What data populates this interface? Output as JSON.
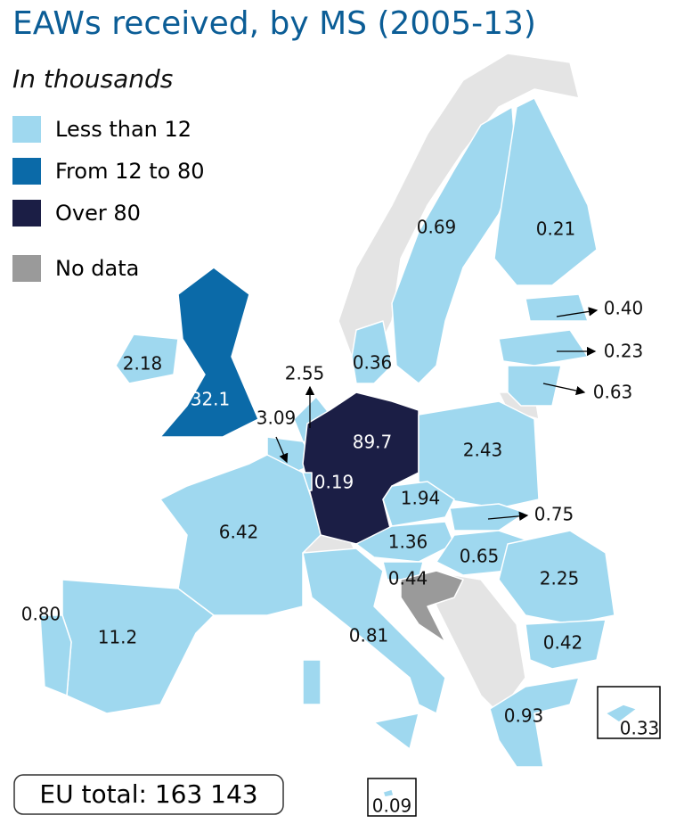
{
  "title": "EAWs received, by MS (2005-13)",
  "subtitle": "In thousands",
  "legend": [
    {
      "label": "Less than 12",
      "color": "#9fd8ef"
    },
    {
      "label": "From 12 to 80",
      "color": "#0b6aa8"
    },
    {
      "label": "Over 80",
      "color": "#1b1e45"
    },
    {
      "label": "No data",
      "color": "#9a9a9a"
    }
  ],
  "regions": [
    {
      "label": "0.69",
      "legend": 0
    },
    {
      "label": "0.21",
      "legend": 0
    },
    {
      "label": "0.40",
      "legend": 0
    },
    {
      "label": "0.23",
      "legend": 0
    },
    {
      "label": "0.63",
      "legend": 0
    },
    {
      "label": "2.18",
      "legend": 0
    },
    {
      "label": "32.1",
      "legend": 1
    },
    {
      "label": "0.36",
      "legend": 0
    },
    {
      "label": "2.55",
      "legend": 0
    },
    {
      "label": "3.09",
      "legend": 0
    },
    {
      "label": "89.7",
      "legend": 2
    },
    {
      "label": "0.19",
      "legend": 0
    },
    {
      "label": "2.43",
      "legend": 0
    },
    {
      "label": "1.94",
      "legend": 0
    },
    {
      "label": "0.75",
      "legend": 0
    },
    {
      "label": "1.36",
      "legend": 0
    },
    {
      "label": "0.65",
      "legend": 0
    },
    {
      "label": "0.44",
      "legend": 0
    },
    {
      "label": "2.25",
      "legend": 0
    },
    {
      "label": "0.42",
      "legend": 0
    },
    {
      "label": "6.42",
      "legend": 0
    },
    {
      "label": "11.2",
      "legend": 0
    },
    {
      "label": "0.80",
      "legend": 0
    },
    {
      "label": "0.81",
      "legend": 0
    },
    {
      "label": "0.93",
      "legend": 0
    },
    {
      "label": "0.33",
      "legend": 0
    },
    {
      "label": "0.09",
      "legend": 0
    }
  ],
  "total": "EU total: 163 143"
}
